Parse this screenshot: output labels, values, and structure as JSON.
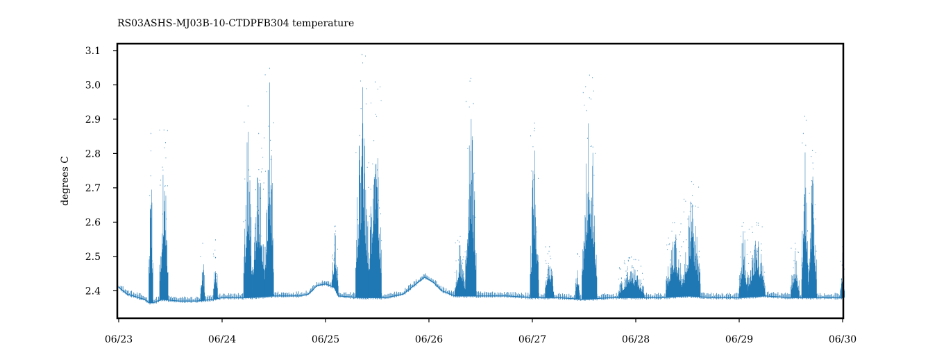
{
  "chart_data": {
    "type": "line",
    "title": "RS03ASHS-MJ03B-10-CTDPFB304 temperature",
    "xlabel": "",
    "ylabel": "degrees C",
    "x_range": [
      "2024-06-23",
      "2024-06-30 01:00"
    ],
    "ylim": [
      2.32,
      3.12
    ],
    "yticks": [
      2.4,
      2.5,
      2.6,
      2.7,
      2.8,
      2.9,
      3.0,
      3.1
    ],
    "ytick_labels": [
      "2.4",
      "2.5",
      "2.6",
      "2.7",
      "2.8",
      "2.9",
      "3.0",
      "3.1"
    ],
    "xticks": [
      "06/23",
      "06/24",
      "06/25",
      "06/26",
      "06/27",
      "06/28",
      "06/29",
      "06/30"
    ],
    "grid": false,
    "legend": "none",
    "color": "#1f77b4",
    "series": [
      {
        "baseline": [
          [
            "06/23 00:00",
            2.41
          ],
          [
            "06/23 02:00",
            2.39
          ],
          [
            "06/23 06:00",
            2.375
          ],
          [
            "06/23 07:00",
            2.365
          ],
          [
            "06/23 08:00",
            2.365
          ],
          [
            "06/23 10:00",
            2.375
          ],
          [
            "06/23 14:00",
            2.37
          ],
          [
            "06/23 18:00",
            2.37
          ],
          [
            "06/23 22:00",
            2.375
          ],
          [
            "06/24 00:00",
            2.38
          ],
          [
            "06/24 06:00",
            2.38
          ],
          [
            "06/24 12:00",
            2.385
          ],
          [
            "06/24 18:00",
            2.385
          ],
          [
            "06/24 20:00",
            2.39
          ],
          [
            "06/24 22:00",
            2.415
          ],
          [
            "06/25 00:00",
            2.42
          ],
          [
            "06/25 02:00",
            2.41
          ],
          [
            "06/25 03:00",
            2.385
          ],
          [
            "06/25 08:00",
            2.38
          ],
          [
            "06/25 14:00",
            2.38
          ],
          [
            "06/25 18:00",
            2.39
          ],
          [
            "06/25 21:00",
            2.42
          ],
          [
            "06/25 23:00",
            2.44
          ],
          [
            "06/26 01:00",
            2.425
          ],
          [
            "06/26 03:00",
            2.4
          ],
          [
            "06/26 06:00",
            2.385
          ],
          [
            "06/26 12:00",
            2.385
          ],
          [
            "06/26 18:00",
            2.385
          ],
          [
            "06/27 00:00",
            2.38
          ],
          [
            "06/27 06:00",
            2.38
          ],
          [
            "06/27 12:00",
            2.375
          ],
          [
            "06/27 18:00",
            2.38
          ],
          [
            "06/28 00:00",
            2.38
          ],
          [
            "06/28 06:00",
            2.38
          ],
          [
            "06/28 12:00",
            2.385
          ],
          [
            "06/28 18:00",
            2.38
          ],
          [
            "06/29 00:00",
            2.38
          ],
          [
            "06/29 06:00",
            2.385
          ],
          [
            "06/29 12:00",
            2.38
          ],
          [
            "06/29 18:00",
            2.38
          ],
          [
            "06/30 00:00",
            2.38
          ]
        ],
        "spikes": [
          {
            "start": "06/23 07:00",
            "end": "06/23 08:00",
            "peak": 2.86
          },
          {
            "start": "06/23 09:30",
            "end": "06/23 11:30",
            "peak": 2.87
          },
          {
            "start": "06/23 19:00",
            "end": "06/23 20:00",
            "peak": 2.54
          },
          {
            "start": "06/23 22:00",
            "end": "06/23 23:00",
            "peak": 2.55
          },
          {
            "start": "06/24 05:00",
            "end": "06/24 07:00",
            "peak": 2.94
          },
          {
            "start": "06/24 07:00",
            "end": "06/24 10:00",
            "peak": 2.86
          },
          {
            "start": "06/24 10:00",
            "end": "06/24 12:00",
            "peak": 3.05
          },
          {
            "start": "06/25 01:30",
            "end": "06/25 03:00",
            "peak": 2.59
          },
          {
            "start": "06/25 07:00",
            "end": "06/25 10:00",
            "peak": 3.09
          },
          {
            "start": "06/25 10:00",
            "end": "06/25 13:00",
            "peak": 3.01
          },
          {
            "start": "06/26 06:00",
            "end": "06/26 08:30",
            "peak": 2.56
          },
          {
            "start": "06/26 08:30",
            "end": "06/26 11:00",
            "peak": 3.02
          },
          {
            "start": "06/26 23:30",
            "end": "06/27 01:30",
            "peak": 2.89
          },
          {
            "start": "06/27 03:00",
            "end": "06/27 05:00",
            "peak": 2.53
          },
          {
            "start": "06/27 10:00",
            "end": "06/27 11:00",
            "peak": 2.51
          },
          {
            "start": "06/27 11:30",
            "end": "06/27 15:00",
            "peak": 3.03
          },
          {
            "start": "06/27 20:00",
            "end": "06/28 02:00",
            "peak": 2.5
          },
          {
            "start": "06/28 07:00",
            "end": "06/28 11:00",
            "peak": 2.6
          },
          {
            "start": "06/28 11:00",
            "end": "06/28 15:00",
            "peak": 2.72
          },
          {
            "start": "06/29 00:00",
            "end": "06/29 02:00",
            "peak": 2.6
          },
          {
            "start": "06/29 02:00",
            "end": "06/29 06:00",
            "peak": 2.6
          },
          {
            "start": "06/29 12:00",
            "end": "06/29 14:00",
            "peak": 2.54
          },
          {
            "start": "06/29 14:30",
            "end": "06/29 16:00",
            "peak": 2.91
          },
          {
            "start": "06/29 16:00",
            "end": "06/29 18:00",
            "peak": 2.81
          },
          {
            "start": "06/29 23:30",
            "end": "06/30 00:30",
            "peak": 2.53
          }
        ]
      }
    ]
  }
}
